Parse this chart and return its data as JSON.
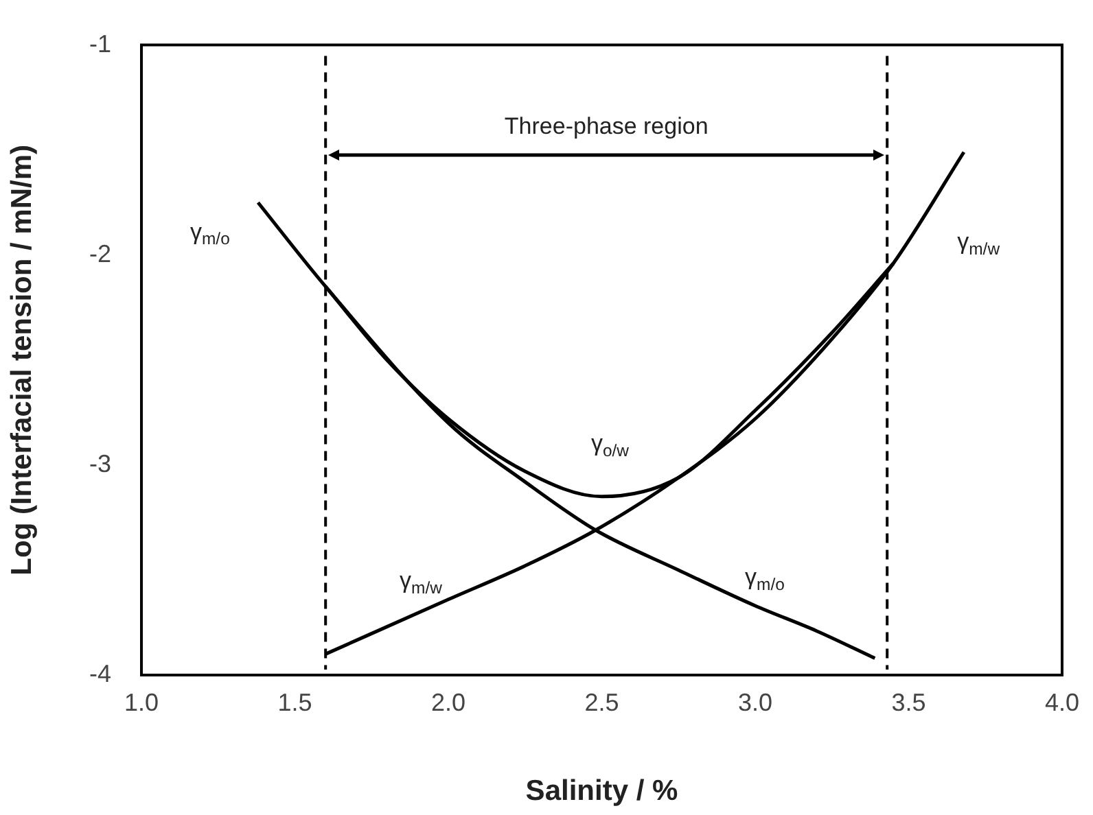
{
  "chart_data": {
    "type": "line",
    "xlabel": "Salinity / %",
    "ylabel": "Log (Interfacial tension / mN/m)",
    "xlim": [
      1.0,
      4.0
    ],
    "xticks": [
      {
        "value": 1,
        "label": "1.0"
      },
      {
        "value": 1.5,
        "label": "1.5"
      },
      {
        "value": 2,
        "label": "2.0"
      },
      {
        "value": 2.5,
        "label": "2.5"
      },
      {
        "value": 3,
        "label": "3.0"
      },
      {
        "value": 3.5,
        "label": "3.5"
      },
      {
        "value": 4,
        "label": "4.0"
      }
    ],
    "ylim": [
      -4,
      -1
    ],
    "yticks": [
      -4,
      -3,
      -2,
      -1
    ],
    "grid": false,
    "legend": false,
    "series": [
      {
        "name": "γ$_{m/o}$",
        "color": "#000000",
        "x": [
          1.38,
          1.6,
          2.0,
          2.25,
          2.48,
          2.75,
          3.0,
          3.2,
          3.39
        ],
        "values": [
          -1.75,
          -2.15,
          -2.8,
          -3.08,
          -3.31,
          -3.5,
          -3.67,
          -3.79,
          -3.92
        ]
      },
      {
        "name": "γ$_{m/w}$",
        "color": "#000000",
        "x": [
          1.6,
          2.0,
          2.25,
          2.48,
          2.75,
          3.0,
          3.25,
          3.45,
          3.68
        ],
        "values": [
          -3.9,
          -3.64,
          -3.48,
          -3.31,
          -3.06,
          -2.78,
          -2.4,
          -2.04,
          -1.51
        ]
      },
      {
        "name": "γ$_{o/w}$",
        "color": "#000000",
        "x": [
          1.6,
          1.8,
          2.0,
          2.25,
          2.5,
          2.75,
          3.0,
          3.25,
          3.45
        ],
        "values": [
          -2.15,
          -2.5,
          -2.78,
          -3.03,
          -3.15,
          -3.06,
          -2.74,
          -2.37,
          -2.04
        ]
      }
    ],
    "ref_lines": [
      {
        "axis": "x",
        "value": 1.6,
        "color": "#000000",
        "line_style": "dashed"
      },
      {
        "axis": "x",
        "value": 3.43,
        "color": "#000000",
        "line_style": "dashed"
      }
    ],
    "annotations": [
      "Three-phase region"
    ]
  }
}
